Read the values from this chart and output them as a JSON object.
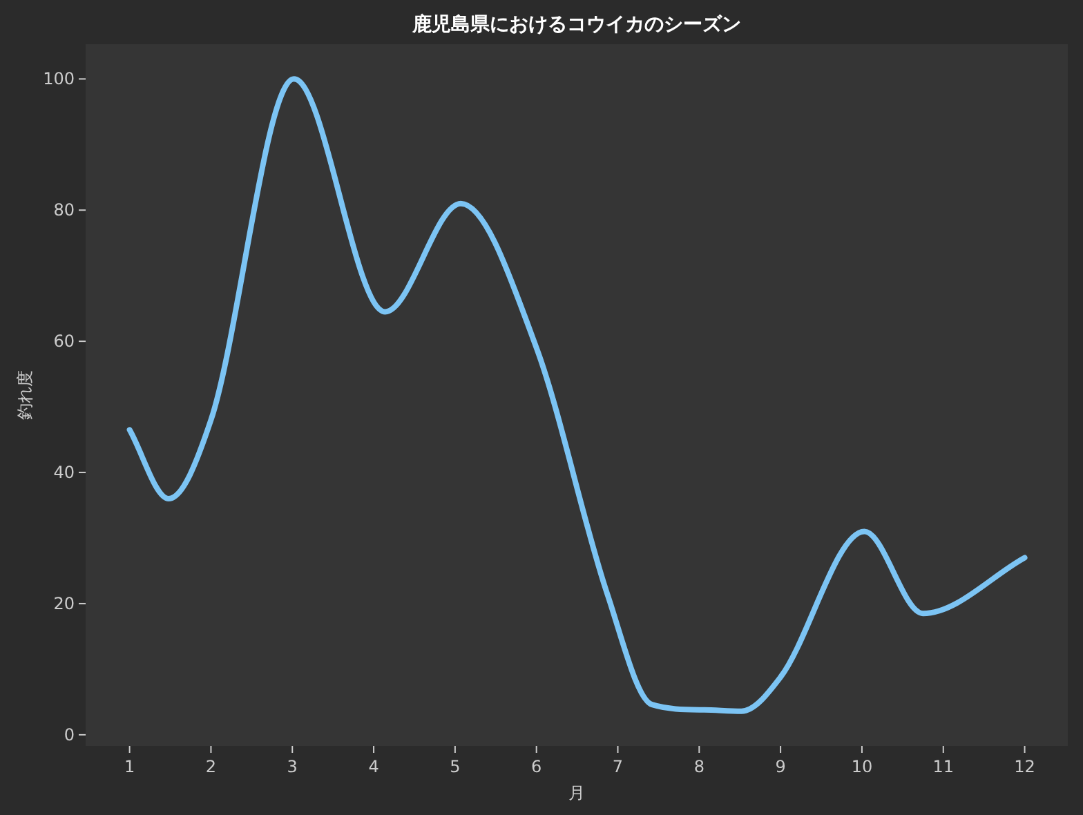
{
  "chart_data": {
    "type": "line",
    "title": "鹿児島県におけるコウイカのシーズン",
    "xlabel": "月",
    "ylabel": "釣れ度",
    "x": [
      1,
      1.48,
      2,
      3.02,
      4.14,
      5.07,
      6,
      6.87,
      7.42,
      8.06,
      8.52,
      9,
      10.03,
      10.75,
      12
    ],
    "series": [
      {
        "color": "#7cc4f4",
        "values": [
          46.5,
          36,
          48,
          100,
          64.5,
          81,
          59,
          21.5,
          4.6,
          3.8,
          3.6,
          8.8,
          31,
          18.5,
          27
        ]
      }
    ],
    "xlim": [
      0.46,
      12.53
    ],
    "ylim": [
      -1.7,
      105.3
    ],
    "xticks": [
      1,
      2,
      3,
      4,
      5,
      6,
      7,
      8,
      9,
      10,
      11,
      12
    ],
    "yticks": [
      0,
      20,
      40,
      60,
      80,
      100
    ],
    "line_style": "solid",
    "marker": "none"
  }
}
